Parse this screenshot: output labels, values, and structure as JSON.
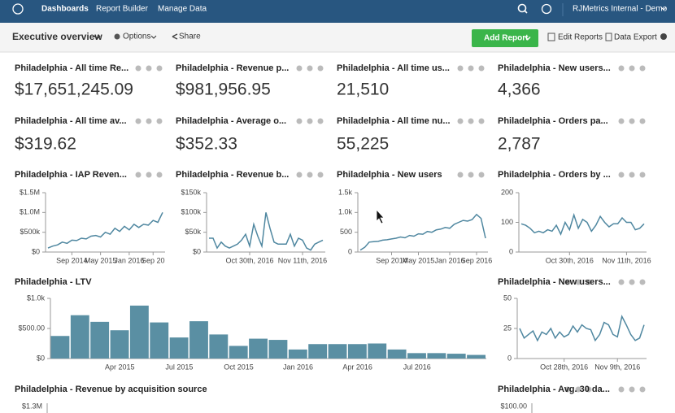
{
  "nav": {
    "items": [
      "Dashboards",
      "Report Builder",
      "Manage Data"
    ],
    "account": "RJMetrics Internal - Demo"
  },
  "toolbar": {
    "title": "Executive overview",
    "options": "Options",
    "share": "Share",
    "add_report": "Add Report",
    "edit_reports": "Edit Reports",
    "data_export": "Data Export"
  },
  "stats": [
    {
      "title": "Philadelphia - All time Re...",
      "value": "$17,651,245.09"
    },
    {
      "title": "Philadelphia - Revenue p...",
      "value": "$981,956.95"
    },
    {
      "title": "Philadelphia - All time us...",
      "value": "21,510"
    },
    {
      "title": "Philadelphia - New users...",
      "value": "4,366"
    },
    {
      "title": "Philadelphia - All time av...",
      "value": "$319.62"
    },
    {
      "title": "Philadelphia - Average o...",
      "value": "$352.33"
    },
    {
      "title": "Philadelphia - All time nu...",
      "value": "55,225"
    },
    {
      "title": "Philadelphia - Orders pa...",
      "value": "2,787"
    }
  ],
  "charts": [
    {
      "title": "Philadelphia - IAP Reven...",
      "type": "line",
      "color": "#4f87a0",
      "values": [
        100000,
        150000,
        180000,
        250000,
        220000,
        300000,
        290000,
        350000,
        330000,
        400000,
        420000,
        380000,
        500000,
        450000,
        600000,
        520000,
        650000,
        560000,
        700000,
        620000,
        700000,
        680000,
        800000,
        750000,
        1000000
      ],
      "xticks": [
        {
          "value": 5,
          "label": "Sep 2014"
        },
        {
          "value": 11,
          "label": "May 2015"
        },
        {
          "value": 17,
          "label": "Jan 2016"
        },
        {
          "value": 22,
          "label": "Sep 20"
        }
      ],
      "ylim": [
        0,
        1500000
      ],
      "yticks": [
        {
          "value": 0,
          "label": "$0"
        },
        {
          "value": 500000,
          "label": "$500k"
        },
        {
          "value": 1000000,
          "label": "$1.0M"
        },
        {
          "value": 1500000,
          "label": "$1.5M"
        }
      ]
    },
    {
      "title": "Philadelphia - Revenue b...",
      "type": "line",
      "color": "#4f87a0",
      "values": [
        35000,
        35000,
        10000,
        25000,
        15000,
        10000,
        15000,
        20000,
        30000,
        45000,
        15000,
        70000,
        40000,
        15000,
        100000,
        60000,
        25000,
        20000,
        20000,
        20000,
        45000,
        15000,
        35000,
        30000,
        10000,
        5000,
        20000,
        25000,
        30000
      ],
      "xticks": [
        {
          "value": 10,
          "label": "Oct 30th, 2016"
        },
        {
          "value": 23,
          "label": "Nov 11th, 2016"
        }
      ],
      "ylim": [
        0,
        150000
      ],
      "yticks": [
        {
          "value": 0,
          "label": "$0"
        },
        {
          "value": 50000,
          "label": "$50k"
        },
        {
          "value": 100000,
          "label": "$100k"
        },
        {
          "value": 150000,
          "label": "$150k"
        }
      ]
    },
    {
      "title": "Philadelphia - New users",
      "type": "line",
      "color": "#4f87a0",
      "values": [
        50,
        120,
        250,
        260,
        270,
        300,
        310,
        330,
        350,
        380,
        360,
        420,
        400,
        460,
        450,
        520,
        500,
        560,
        580,
        620,
        600,
        700,
        750,
        800,
        780,
        820,
        950,
        850,
        350
      ],
      "xticks": [
        {
          "value": 7,
          "label": "Sep 2014"
        },
        {
          "value": 13,
          "label": "May 2015"
        },
        {
          "value": 20,
          "label": "Jan 2016"
        },
        {
          "value": 26,
          "label": "Sep 2016"
        }
      ],
      "ylim": [
        0,
        1500
      ],
      "yticks": [
        0,
        500,
        {
          "value": 1000,
          "label": "1.0k"
        },
        {
          "value": 1500,
          "label": "1.5k"
        }
      ]
    },
    {
      "title": "Philadelphia - Orders by ...",
      "type": "line",
      "color": "#4f87a0",
      "values": [
        95,
        90,
        80,
        65,
        70,
        65,
        75,
        70,
        90,
        60,
        100,
        75,
        125,
        80,
        110,
        100,
        70,
        90,
        120,
        100,
        85,
        95,
        95,
        115,
        100,
        100,
        75,
        80,
        95
      ],
      "xticks": [
        {
          "value": 11,
          "label": "Oct 30th, 2016"
        },
        {
          "value": 24,
          "label": "Nov 11th, 2016"
        }
      ],
      "ylim": [
        0,
        200
      ],
      "yticks": [
        0,
        100,
        200
      ]
    },
    {
      "title": "Philadelphia - LTV",
      "type": "bar",
      "color": "#5a8fa3",
      "categories": [
        null,
        null,
        null,
        "Apr 2015",
        null,
        null,
        "Jul 2015",
        null,
        null,
        "Oct 2015",
        null,
        null,
        "Jan 2016",
        null,
        null,
        "Apr 2016",
        null,
        null,
        "Jul 2016",
        null,
        null,
        null
      ],
      "values": [
        375,
        720,
        610,
        470,
        880,
        600,
        350,
        620,
        400,
        210,
        330,
        310,
        150,
        240,
        240,
        240,
        250,
        150,
        90,
        90,
        80,
        60
      ],
      "ylim": [
        0,
        1000
      ],
      "yticks": [
        {
          "value": 0,
          "label": "$0"
        },
        {
          "value": 500,
          "label": "$500.00"
        },
        {
          "value": 1000,
          "label": "$1.0k"
        }
      ]
    },
    {
      "title": "Philadelphia - New users...",
      "type": "line",
      "color": "#4f87a0",
      "values": [
        25,
        17,
        20,
        23,
        15,
        22,
        20,
        25,
        17,
        22,
        18,
        20,
        27,
        22,
        28,
        25,
        24,
        15,
        20,
        30,
        28,
        20,
        18,
        35,
        28,
        20,
        15,
        17,
        28
      ],
      "xticks": [
        {
          "value": 10,
          "label": "Oct 28th, 2016"
        },
        {
          "value": 22,
          "label": "Nov 9th, 2016"
        }
      ],
      "ylim": [
        0,
        50
      ],
      "yticks": [
        0,
        25,
        50
      ]
    }
  ],
  "partial": [
    {
      "title": "Philadelphia - Revenue by acquisition source",
      "ytick": "$1.3M"
    },
    {
      "title": "Philadelphia - Avg. 30 da...",
      "ytick": "$100.00"
    }
  ]
}
